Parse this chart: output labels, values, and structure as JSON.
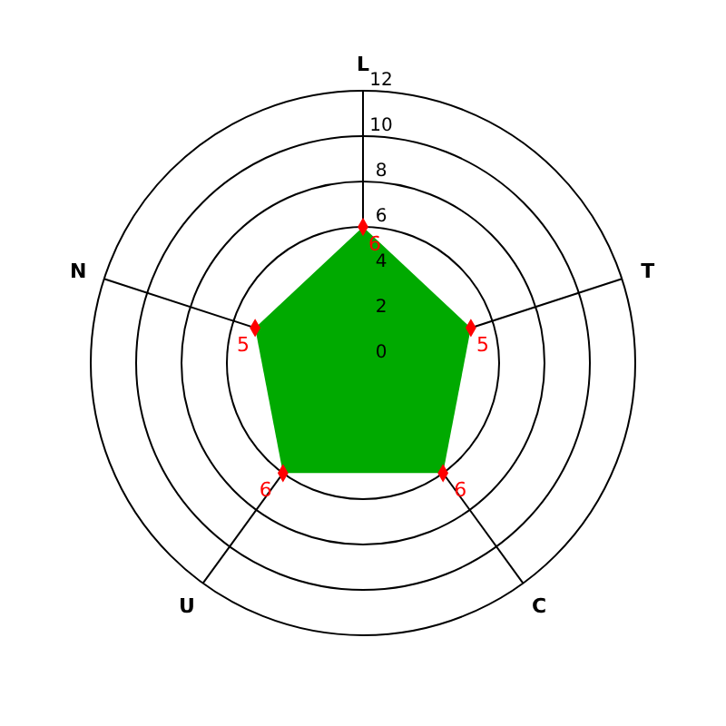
{
  "chart_data": {
    "type": "radar",
    "categories": [
      "L",
      "T",
      "C",
      "U",
      "N"
    ],
    "series": [
      {
        "color": "#00aa00",
        "values": [
          6,
          5,
          6,
          6,
          5
        ]
      }
    ],
    "ylim": [
      0,
      12
    ],
    "yticks": [
      0,
      2,
      4,
      6,
      8,
      10,
      12
    ],
    "marker": "diamond",
    "data_labels": true,
    "grid": true
  }
}
